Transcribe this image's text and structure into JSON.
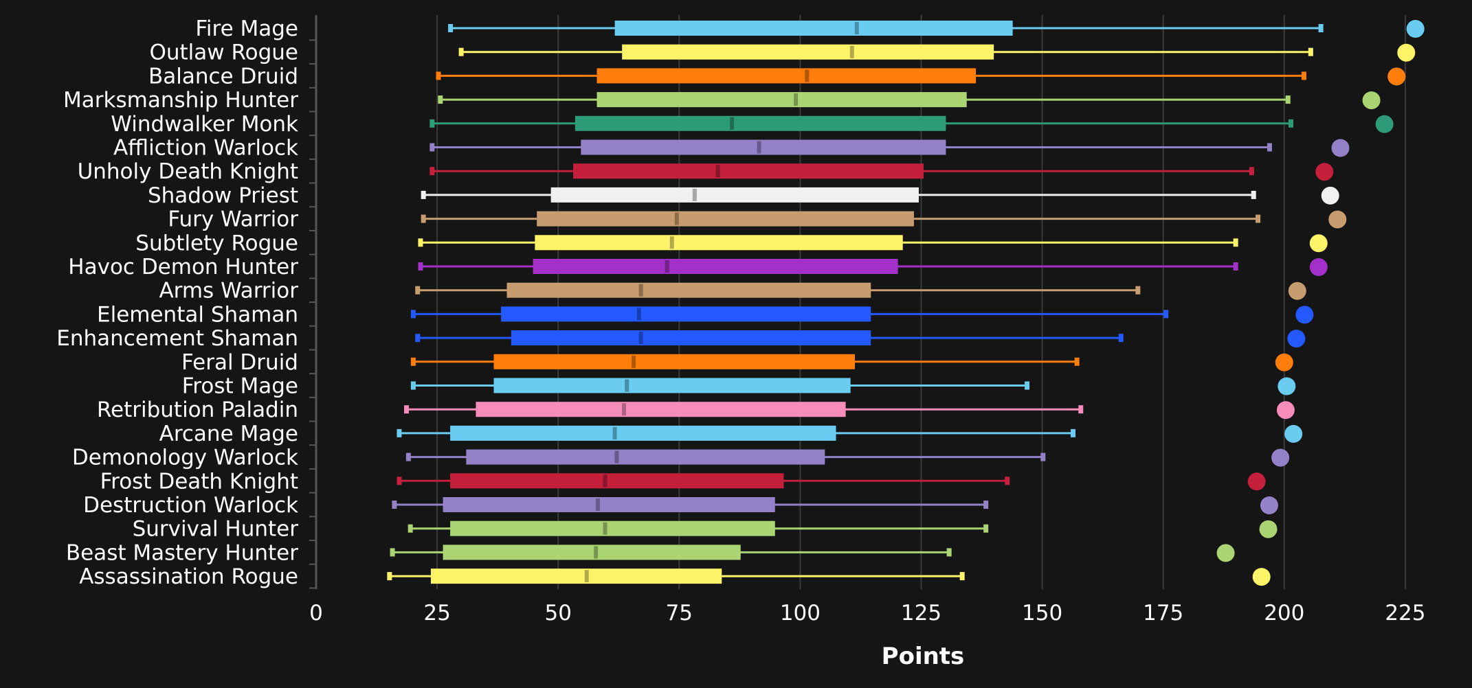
{
  "chart_data": {
    "type": "boxplot",
    "title": "",
    "xlabel": "Points",
    "ylabel": "",
    "xlim": [
      0,
      232
    ],
    "xticks": [
      0,
      25,
      50,
      75,
      100,
      125,
      150,
      175,
      200,
      225
    ],
    "grid": "vertical",
    "legend": "none",
    "fields": [
      "min",
      "q1",
      "median",
      "q3",
      "max",
      "dot"
    ],
    "rows": [
      {
        "label": "Fire Mage",
        "color": "#69ccf0",
        "min": 27.7,
        "q1": 61.7,
        "median": 111.7,
        "q3": 143.9,
        "max": 207.5,
        "dot": 227.1
      },
      {
        "label": "Outlaw Rogue",
        "color": "#fff468",
        "min": 29.9,
        "q1": 63.2,
        "median": 110.7,
        "q3": 140.0,
        "max": 205.4,
        "dot": 225.2
      },
      {
        "label": "Balance Druid",
        "color": "#ff7d0a",
        "min": 25.2,
        "q1": 58.0,
        "median": 101.4,
        "q3": 136.3,
        "max": 204.0,
        "dot": 223.2
      },
      {
        "label": "Marksmanship Hunter",
        "color": "#abd473",
        "min": 25.6,
        "q1": 58.0,
        "median": 99.1,
        "q3": 134.4,
        "max": 200.7,
        "dot": 218.0
      },
      {
        "label": "Windwalker Monk",
        "color": "#2d9b78",
        "min": 23.9,
        "q1": 53.5,
        "median": 85.9,
        "q3": 130.1,
        "max": 201.3,
        "dot": 220.7
      },
      {
        "label": "Affliction Warlock",
        "color": "#9482c9",
        "min": 23.9,
        "q1": 54.7,
        "median": 91.5,
        "q3": 130.1,
        "max": 196.9,
        "dot": 211.6
      },
      {
        "label": "Unholy Death Knight",
        "color": "#c41f3b",
        "min": 23.9,
        "q1": 53.1,
        "median": 83.0,
        "q3": 125.5,
        "max": 193.2,
        "dot": 208.3
      },
      {
        "label": "Shadow Priest",
        "color": "#f0f0f0",
        "min": 22.1,
        "q1": 48.5,
        "median": 78.2,
        "q3": 124.5,
        "max": 193.6,
        "dot": 209.5
      },
      {
        "label": "Fury Warrior",
        "color": "#c79c6e",
        "min": 22.1,
        "q1": 45.6,
        "median": 74.5,
        "q3": 123.5,
        "max": 194.5,
        "dot": 211.0
      },
      {
        "label": "Subtlety Rogue",
        "color": "#fff468",
        "min": 21.5,
        "q1": 45.2,
        "median": 73.5,
        "q3": 121.2,
        "max": 189.9,
        "dot": 207.1
      },
      {
        "label": "Havoc Demon Hunter",
        "color": "#a330c9",
        "min": 21.5,
        "q1": 44.8,
        "median": 72.5,
        "q3": 120.2,
        "max": 189.9,
        "dot": 207.1
      },
      {
        "label": "Arms Warrior",
        "color": "#c79c6e",
        "min": 20.9,
        "q1": 39.4,
        "median": 67.1,
        "q3": 114.6,
        "max": 169.7,
        "dot": 202.7
      },
      {
        "label": "Elemental Shaman",
        "color": "#2459ff",
        "min": 20.0,
        "q1": 38.2,
        "median": 66.7,
        "q3": 114.6,
        "max": 175.5,
        "dot": 204.2
      },
      {
        "label": "Enhancement Shaman",
        "color": "#2459ff",
        "min": 20.9,
        "q1": 40.3,
        "median": 67.1,
        "q3": 114.6,
        "max": 166.2,
        "dot": 202.5
      },
      {
        "label": "Feral Druid",
        "color": "#ff7d0a",
        "min": 20.0,
        "q1": 36.7,
        "median": 65.6,
        "q3": 111.3,
        "max": 157.1,
        "dot": 200.0
      },
      {
        "label": "Frost Mage",
        "color": "#69ccf0",
        "min": 20.0,
        "q1": 36.7,
        "median": 64.2,
        "q3": 110.4,
        "max": 146.8,
        "dot": 200.5
      },
      {
        "label": "Retribution Paladin",
        "color": "#f58cba",
        "min": 18.6,
        "q1": 33.0,
        "median": 63.6,
        "q3": 109.4,
        "max": 157.9,
        "dot": 200.3
      },
      {
        "label": "Arcane Mage",
        "color": "#69ccf0",
        "min": 17.1,
        "q1": 27.7,
        "median": 61.7,
        "q3": 107.4,
        "max": 156.3,
        "dot": 201.9
      },
      {
        "label": "Demonology Warlock",
        "color": "#9482c9",
        "min": 19.0,
        "q1": 31.0,
        "median": 62.1,
        "q3": 105.1,
        "max": 150.1,
        "dot": 199.2
      },
      {
        "label": "Frost Death Knight",
        "color": "#c41f3b",
        "min": 17.1,
        "q1": 27.7,
        "median": 59.7,
        "q3": 96.6,
        "max": 142.7,
        "dot": 194.3
      },
      {
        "label": "Destruction Warlock",
        "color": "#9482c9",
        "min": 16.1,
        "q1": 26.2,
        "median": 58.2,
        "q3": 94.8,
        "max": 138.3,
        "dot": 196.9
      },
      {
        "label": "Survival Hunter",
        "color": "#abd473",
        "min": 19.4,
        "q1": 27.7,
        "median": 59.7,
        "q3": 94.8,
        "max": 138.3,
        "dot": 196.7
      },
      {
        "label": "Beast Mastery Hunter",
        "color": "#abd473",
        "min": 15.7,
        "q1": 26.2,
        "median": 57.8,
        "q3": 87.7,
        "max": 130.7,
        "dot": 187.9
      },
      {
        "label": "Assassination Rogue",
        "color": "#fff468",
        "min": 15.1,
        "q1": 23.7,
        "median": 55.9,
        "q3": 83.8,
        "max": 133.4,
        "dot": 195.3
      }
    ]
  }
}
